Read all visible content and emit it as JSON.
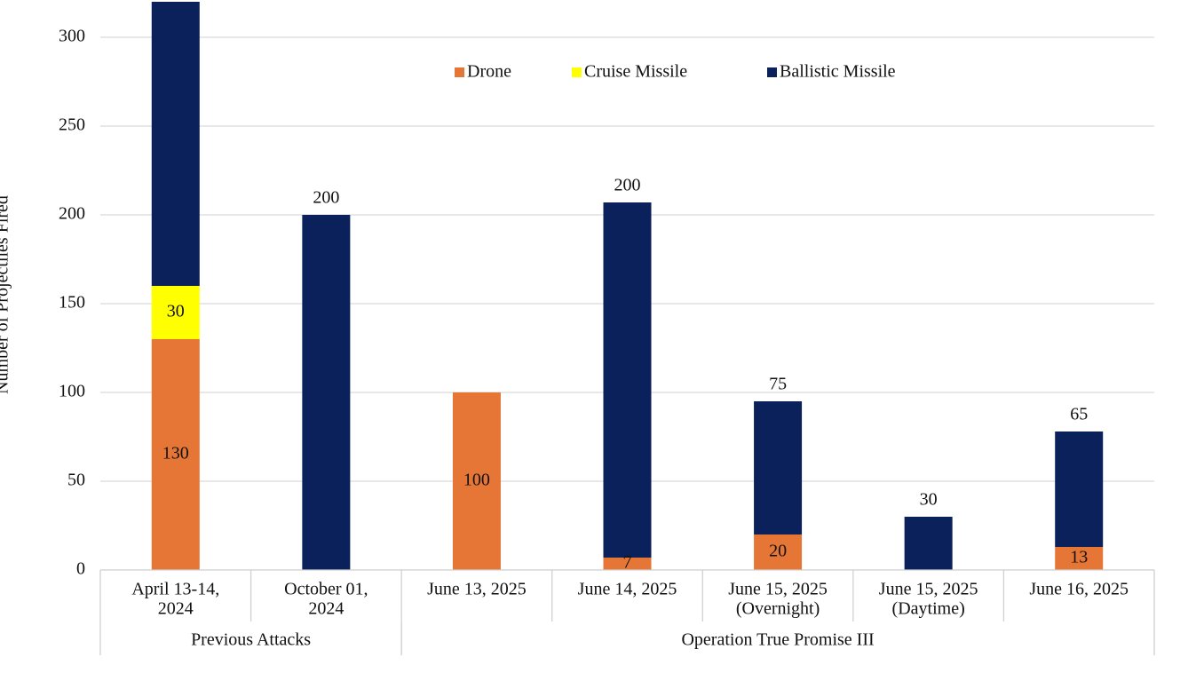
{
  "chart_data": {
    "type": "stacked_bar",
    "y_label": "Number of Projectiles Fired",
    "categories": [
      [
        "April 13-14,",
        "2024"
      ],
      [
        "October 01,",
        "2024"
      ],
      [
        "June 13, 2025"
      ],
      [
        "June 14, 2025"
      ],
      [
        "June 15, 2025",
        "(Overnight)"
      ],
      [
        "June 15, 2025",
        "(Daytime)"
      ],
      [
        "June 16, 2025"
      ]
    ],
    "groups": [
      {
        "name": "Previous Attacks",
        "span": 2
      },
      {
        "name": "Operation True Promise III",
        "span": 5
      }
    ],
    "series": [
      {
        "name": "Drone",
        "color": "#e57636",
        "values": [
          130,
          null,
          100,
          7,
          20,
          null,
          13
        ],
        "label_position": "inside"
      },
      {
        "name": "Cruise Missile",
        "color": "#ffff00",
        "values": [
          30,
          null,
          null,
          null,
          null,
          null,
          null
        ],
        "label_position": "inside"
      },
      {
        "name": "Ballistic Missile",
        "color": "#0b215c",
        "values": [
          160,
          200,
          null,
          200,
          75,
          30,
          65
        ],
        "label_position": "above"
      }
    ],
    "ylim": [
      0,
      310
    ],
    "yticks": [
      0,
      50,
      100,
      150,
      200,
      250,
      300
    ],
    "grid": true,
    "legend": "top"
  }
}
